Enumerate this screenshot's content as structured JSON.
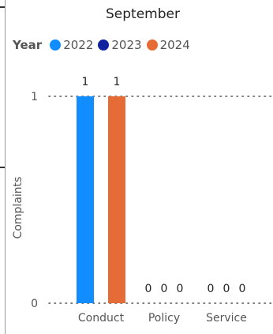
{
  "chart_data": {
    "type": "bar",
    "title": "September",
    "legend_title": "Year",
    "categories": [
      "Conduct",
      "Policy",
      "Service"
    ],
    "series": [
      {
        "name": "2022",
        "color": "#118DFF",
        "values": [
          1,
          0,
          0
        ]
      },
      {
        "name": "2023",
        "color": "#12239E",
        "values": [
          0,
          0,
          0
        ]
      },
      {
        "name": "2024",
        "color": "#E66C37",
        "values": [
          1,
          0,
          0
        ]
      }
    ],
    "data_labels": [
      [
        "1",
        "",
        "1"
      ],
      [
        "0",
        "0",
        "0"
      ],
      [
        "0",
        "0",
        "0"
      ]
    ],
    "xlabel": "",
    "ylabel": "Complaints",
    "ylim": [
      0,
      1
    ],
    "yticks": [
      "0",
      "1"
    ],
    "grid": true,
    "legend_position": "top-left"
  }
}
